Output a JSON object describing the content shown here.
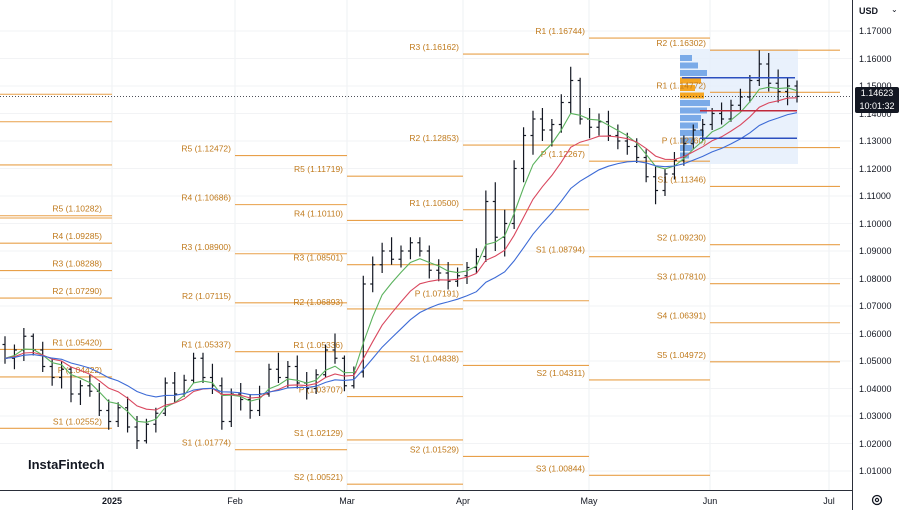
{
  "currency": "USD",
  "current_price": "1.14623",
  "countdown": "10:01:32",
  "logo_text": "InstaFintech",
  "price_ticks": [
    "1.17000",
    "1.16000",
    "1.15000",
    "1.14000",
    "1.13000",
    "1.12000",
    "1.11000",
    "1.10000",
    "1.09000",
    "1.08000",
    "1.07000",
    "1.06000",
    "1.05000",
    "1.04000",
    "1.03000",
    "1.02000",
    "1.01000"
  ],
  "time_labels": [
    {
      "label": "2025",
      "bold": true
    },
    {
      "label": "Feb",
      "bold": false
    },
    {
      "label": "Mar",
      "bold": false
    },
    {
      "label": "Apr",
      "bold": false
    },
    {
      "label": "May",
      "bold": false
    },
    {
      "label": "Jun",
      "bold": false
    },
    {
      "label": "Jul",
      "bold": false
    }
  ],
  "colors": {
    "pivot": "#e8a04a",
    "candle": "#131722",
    "ema_fast": "#5bb25d",
    "ema_mid": "#d9485f",
    "ema_slow": "#3d6bd6",
    "profile": "#7aaae8",
    "profile_hi": "#f5a623"
  },
  "chart_data": {
    "type": "candlestick",
    "symbol_unit": "USD",
    "ylim": [
      1.005,
      1.177
    ],
    "pivot_levels": [
      {
        "period": "Dec",
        "levels": [
          {
            "name": "R5",
            "value": 1.10282
          },
          {
            "name": "R4",
            "value": 1.09285
          },
          {
            "name": "R3",
            "value": 1.08288
          },
          {
            "name": "R2",
            "value": 1.0729
          },
          {
            "name": "R1",
            "value": 1.0542
          },
          {
            "name": "P",
            "value": 1.04422
          },
          {
            "name": "S1",
            "value": 1.02552
          }
        ]
      },
      {
        "period": "Jan",
        "levels": [
          {
            "name": "R5",
            "value": 1.12472
          },
          {
            "name": "R4",
            "value": 1.10686
          },
          {
            "name": "R3",
            "value": 1.089
          },
          {
            "name": "R2",
            "value": 1.07115
          },
          {
            "name": "R1",
            "value": 1.05337
          },
          {
            "name": "S1",
            "value": 1.01774
          }
        ]
      },
      {
        "period": "Feb",
        "levels": [
          {
            "name": "R5",
            "value": 1.11719
          },
          {
            "name": "R4",
            "value": 1.1011
          },
          {
            "name": "R3",
            "value": 1.08501
          },
          {
            "name": "R2",
            "value": 1.06893
          },
          {
            "name": "R1",
            "value": 1.05336
          },
          {
            "name": "P",
            "value": 1.03707
          },
          {
            "name": "S1",
            "value": 1.02129
          },
          {
            "name": "S2",
            "value": 1.00521
          }
        ]
      },
      {
        "period": "Mar",
        "levels": [
          {
            "name": "R3",
            "value": 1.16162
          },
          {
            "name": "R2",
            "value": 1.12853
          },
          {
            "name": "R1",
            "value": 1.105
          },
          {
            "name": "P",
            "value": 1.07191
          },
          {
            "name": "S1",
            "value": 1.04838
          },
          {
            "name": "S2",
            "value": 1.01529
          }
        ]
      },
      {
        "period": "Apr",
        "levels": [
          {
            "name": "R1",
            "value": 1.16744
          },
          {
            "name": "P",
            "value": 1.12267
          },
          {
            "name": "S1",
            "value": 1.08794
          },
          {
            "name": "S2",
            "value": 1.04311
          },
          {
            "name": "S3",
            "value": 1.00844
          }
        ]
      },
      {
        "period": "May",
        "levels": [
          {
            "name": "R2",
            "value": 1.16302
          },
          {
            "name": "R1",
            "value": 1.14772
          },
          {
            "name": "P",
            "value": 1.1276
          },
          {
            "name": "S1",
            "value": 1.11346
          },
          {
            "name": "S2",
            "value": 1.0923
          },
          {
            "name": "S3",
            "value": 1.0781
          },
          {
            "name": "S4",
            "value": 1.06391
          },
          {
            "name": "S5",
            "value": 1.04972
          }
        ]
      }
    ],
    "candles": [
      [
        1.056,
        1.059,
        1.049,
        1.051
      ],
      [
        1.051,
        1.056,
        1.047,
        1.054
      ],
      [
        1.054,
        1.062,
        1.05,
        1.059
      ],
      [
        1.059,
        1.06,
        1.052,
        1.054
      ],
      [
        1.054,
        1.057,
        1.046,
        1.048
      ],
      [
        1.048,
        1.051,
        1.041,
        1.044
      ],
      [
        1.044,
        1.05,
        1.04,
        1.047
      ],
      [
        1.047,
        1.048,
        1.035,
        1.038
      ],
      [
        1.038,
        1.043,
        1.034,
        1.041
      ],
      [
        1.041,
        1.045,
        1.037,
        1.039
      ],
      [
        1.039,
        1.042,
        1.03,
        1.032
      ],
      [
        1.032,
        1.036,
        1.025,
        1.028
      ],
      [
        1.028,
        1.035,
        1.026,
        1.033
      ],
      [
        1.033,
        1.037,
        1.024,
        1.026
      ],
      [
        1.026,
        1.03,
        1.018,
        1.021
      ],
      [
        1.021,
        1.029,
        1.02,
        1.027
      ],
      [
        1.027,
        1.033,
        1.024,
        1.031
      ],
      [
        1.031,
        1.044,
        1.03,
        1.042
      ],
      [
        1.042,
        1.046,
        1.035,
        1.038
      ],
      [
        1.038,
        1.045,
        1.037,
        1.043
      ],
      [
        1.043,
        1.053,
        1.042,
        1.051
      ],
      [
        1.051,
        1.053,
        1.042,
        1.044
      ],
      [
        1.044,
        1.049,
        1.038,
        1.041
      ],
      [
        1.041,
        1.044,
        1.025,
        1.028
      ],
      [
        1.028,
        1.04,
        1.026,
        1.038
      ],
      [
        1.038,
        1.042,
        1.032,
        1.036
      ],
      [
        1.036,
        1.038,
        1.029,
        1.032
      ],
      [
        1.032,
        1.041,
        1.03,
        1.038
      ],
      [
        1.038,
        1.049,
        1.037,
        1.047
      ],
      [
        1.047,
        1.053,
        1.042,
        1.044
      ],
      [
        1.044,
        1.05,
        1.04,
        1.048
      ],
      [
        1.048,
        1.052,
        1.04,
        1.042
      ],
      [
        1.042,
        1.046,
        1.036,
        1.04
      ],
      [
        1.04,
        1.047,
        1.038,
        1.045
      ],
      [
        1.045,
        1.056,
        1.044,
        1.054
      ],
      [
        1.054,
        1.06,
        1.049,
        1.051
      ],
      [
        1.051,
        1.052,
        1.039,
        1.041
      ],
      [
        1.041,
        1.048,
        1.04,
        1.046
      ],
      [
        1.046,
        1.081,
        1.044,
        1.078
      ],
      [
        1.078,
        1.088,
        1.075,
        1.085
      ],
      [
        1.085,
        1.093,
        1.082,
        1.09
      ],
      [
        1.09,
        1.095,
        1.085,
        1.087
      ],
      [
        1.087,
        1.092,
        1.084,
        1.09
      ],
      [
        1.09,
        1.095,
        1.087,
        1.093
      ],
      [
        1.093,
        1.095,
        1.088,
        1.09
      ],
      [
        1.09,
        1.092,
        1.08,
        1.083
      ],
      [
        1.083,
        1.087,
        1.079,
        1.082
      ],
      [
        1.082,
        1.086,
        1.076,
        1.079
      ],
      [
        1.079,
        1.084,
        1.077,
        1.081
      ],
      [
        1.081,
        1.086,
        1.078,
        1.084
      ],
      [
        1.084,
        1.091,
        1.082,
        1.088
      ],
      [
        1.088,
        1.112,
        1.086,
        1.108
      ],
      [
        1.108,
        1.115,
        1.09,
        1.095
      ],
      [
        1.095,
        1.105,
        1.088,
        1.1
      ],
      [
        1.1,
        1.123,
        1.098,
        1.12
      ],
      [
        1.12,
        1.135,
        1.115,
        1.132
      ],
      [
        1.132,
        1.141,
        1.125,
        1.138
      ],
      [
        1.138,
        1.142,
        1.13,
        1.134
      ],
      [
        1.134,
        1.138,
        1.128,
        1.136
      ],
      [
        1.136,
        1.147,
        1.133,
        1.144
      ],
      [
        1.144,
        1.157,
        1.14,
        1.152
      ],
      [
        1.152,
        1.153,
        1.136,
        1.138
      ],
      [
        1.138,
        1.142,
        1.131,
        1.135
      ],
      [
        1.135,
        1.14,
        1.132,
        1.137
      ],
      [
        1.137,
        1.141,
        1.13,
        1.132
      ],
      [
        1.132,
        1.136,
        1.127,
        1.13
      ],
      [
        1.13,
        1.133,
        1.125,
        1.128
      ],
      [
        1.128,
        1.131,
        1.122,
        1.124
      ],
      [
        1.124,
        1.127,
        1.115,
        1.117
      ],
      [
        1.117,
        1.121,
        1.107,
        1.112
      ],
      [
        1.112,
        1.12,
        1.11,
        1.118
      ],
      [
        1.118,
        1.126,
        1.116,
        1.123
      ],
      [
        1.123,
        1.132,
        1.121,
        1.129
      ],
      [
        1.129,
        1.136,
        1.127,
        1.134
      ],
      [
        1.134,
        1.138,
        1.13,
        1.136
      ],
      [
        1.136,
        1.142,
        1.134,
        1.14
      ],
      [
        1.14,
        1.144,
        1.136,
        1.138
      ],
      [
        1.138,
        1.145,
        1.137,
        1.143
      ],
      [
        1.143,
        1.149,
        1.141,
        1.146
      ],
      [
        1.146,
        1.154,
        1.144,
        1.152
      ],
      [
        1.152,
        1.163,
        1.15,
        1.158
      ],
      [
        1.158,
        1.162,
        1.148,
        1.151
      ],
      [
        1.151,
        1.156,
        1.144,
        1.148
      ],
      [
        1.148,
        1.153,
        1.143,
        1.15
      ],
      [
        1.15,
        1.152,
        1.144,
        1.1462
      ]
    ]
  }
}
